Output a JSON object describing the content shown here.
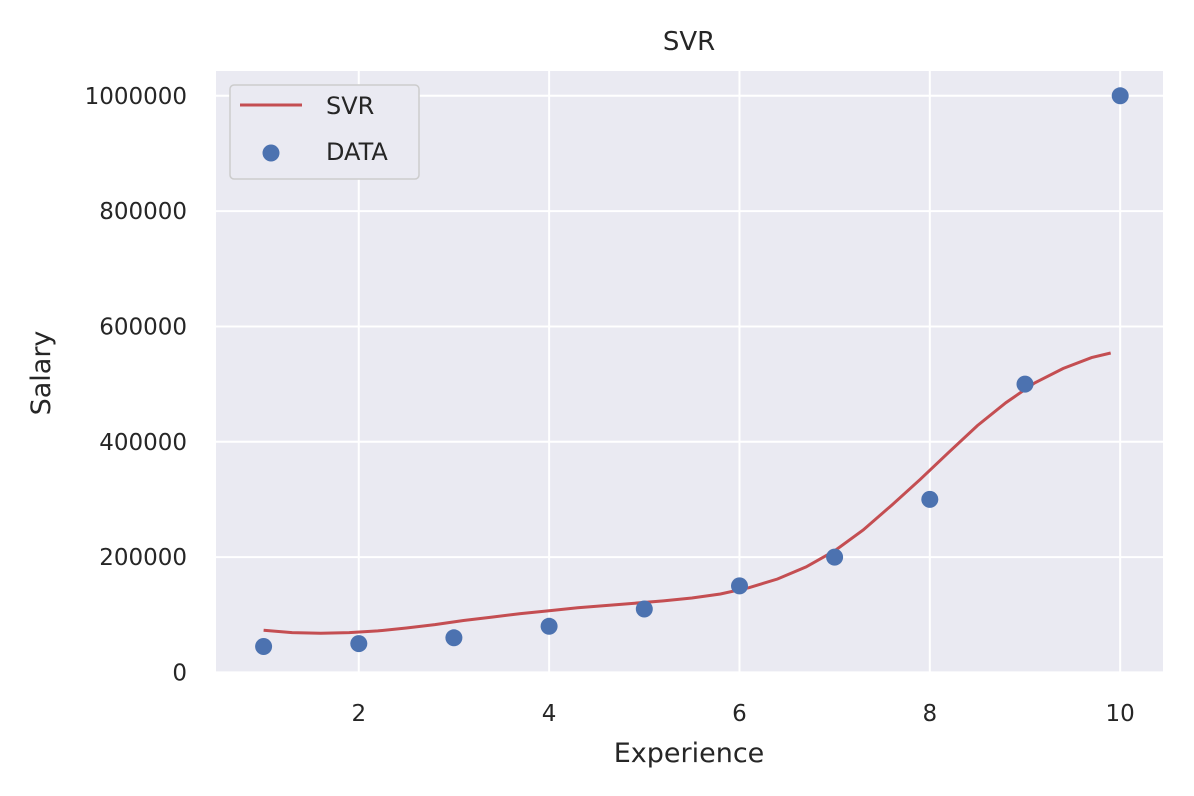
{
  "chart_data": {
    "type": "scatter",
    "title": "SVR",
    "xlabel": "Experience",
    "ylabel": "Salary",
    "xlim": [
      0.5,
      10.45
    ],
    "ylim": [
      -1000,
      1043000
    ],
    "xticks": [
      2,
      4,
      6,
      8,
      10
    ],
    "yticks": [
      0,
      200000,
      400000,
      600000,
      800000,
      1000000
    ],
    "grid": true,
    "legend_position": "top-left",
    "colors": {
      "background": "#eaeaf2",
      "grid": "#ffffff",
      "line": "#c44e52",
      "scatter": "#4c72b0",
      "text": "#262626"
    },
    "series": [
      {
        "name": "SVR",
        "type": "line",
        "x": [
          1.0,
          1.3,
          1.6,
          1.9,
          2.2,
          2.5,
          2.8,
          3.1,
          3.4,
          3.7,
          4.0,
          4.3,
          4.6,
          4.9,
          5.2,
          5.5,
          5.8,
          6.1,
          6.4,
          6.7,
          7.0,
          7.3,
          7.6,
          7.9,
          8.2,
          8.5,
          8.8,
          9.1,
          9.4,
          9.7,
          9.9
        ],
        "y": [
          73000,
          69000,
          68000,
          69000,
          72000,
          77000,
          83000,
          90000,
          96000,
          102000,
          107000,
          112000,
          116000,
          120000,
          124000,
          129000,
          136000,
          147000,
          162000,
          183000,
          211000,
          247000,
          290000,
          335000,
          382000,
          428000,
          468000,
          502000,
          527000,
          546000,
          554000
        ]
      },
      {
        "name": "DATA",
        "type": "scatter",
        "x": [
          1,
          2,
          3,
          4,
          5,
          6,
          7,
          8,
          9,
          10
        ],
        "y": [
          45000,
          50000,
          60000,
          80000,
          110000,
          150000,
          200000,
          300000,
          500000,
          1000000
        ]
      }
    ]
  }
}
